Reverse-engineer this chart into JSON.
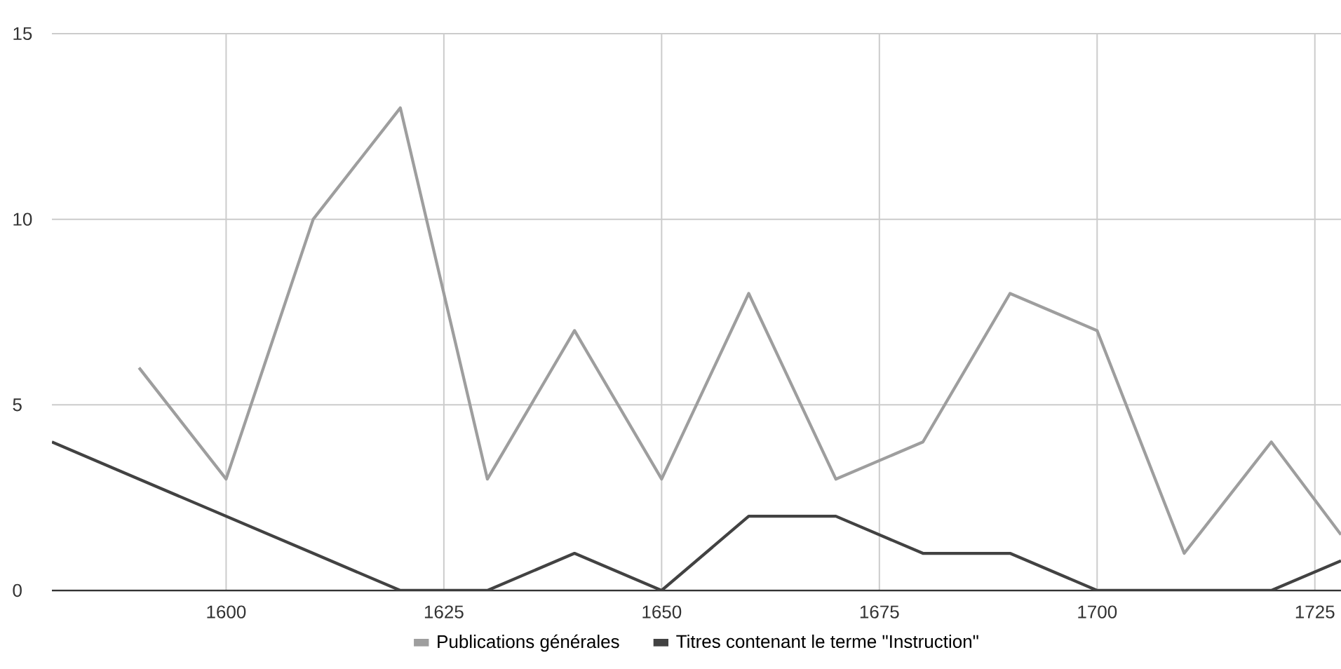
{
  "chart_data": {
    "type": "line",
    "xlim": [
      1580,
      1728
    ],
    "ylim": [
      0,
      15
    ],
    "xticks": [
      1600,
      1625,
      1650,
      1675,
      1700,
      1725
    ],
    "yticks": [
      0,
      5,
      10,
      15
    ],
    "grid": true,
    "legend": "bottom",
    "series": [
      {
        "name": "Publications générales",
        "color": "#9e9e9e",
        "x": [
          1590,
          1600,
          1610,
          1620,
          1630,
          1640,
          1650,
          1660,
          1670,
          1680,
          1690,
          1700,
          1710,
          1720,
          1728
        ],
        "values": [
          6,
          3,
          10,
          13,
          3,
          7,
          3,
          8,
          3,
          4,
          8,
          7,
          1,
          4,
          1.5
        ]
      },
      {
        "name": "Titres contenant le terme \"Instruction\"",
        "color": "#424242",
        "x": [
          1580,
          1590,
          1600,
          1610,
          1620,
          1630,
          1640,
          1650,
          1660,
          1670,
          1680,
          1690,
          1700,
          1710,
          1720,
          1728
        ],
        "values": [
          4,
          3,
          2,
          1,
          0,
          0,
          1,
          0,
          2,
          2,
          1,
          1,
          0,
          0,
          0,
          0.8
        ]
      }
    ]
  }
}
